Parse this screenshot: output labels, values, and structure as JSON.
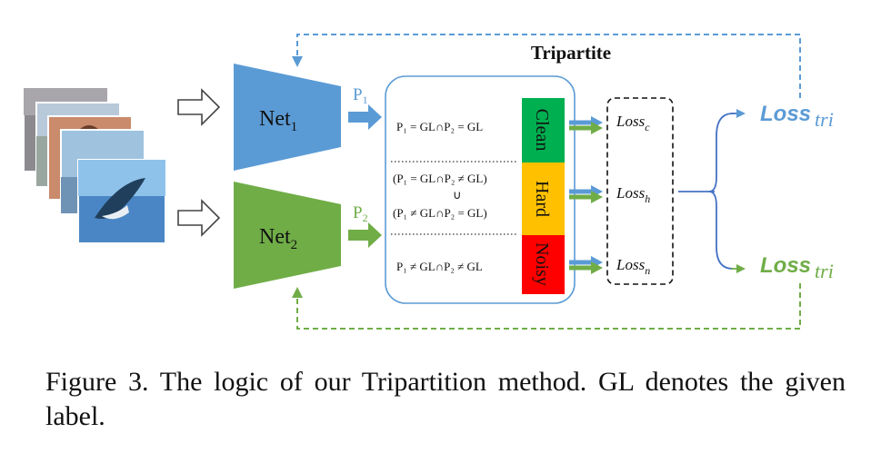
{
  "diagram": {
    "title": "Tripartite",
    "net1": {
      "name": "Net",
      "sub": "1",
      "color": "#5b9bd5"
    },
    "net2": {
      "name": "Net",
      "sub": "2",
      "color": "#70ad47"
    },
    "p1": {
      "name": "P",
      "sub": "1"
    },
    "p2": {
      "name": "P",
      "sub": "2"
    },
    "conditions": {
      "clean": "P₁ = GL∩P₂ = GL",
      "hard_line1": "(P₁ = GL∩P₂ ≠ GL)",
      "hard_union": "∪",
      "hard_line2": "(P₁ ≠ GL∩P₂ = GL)",
      "noisy": "P₁ ≠ GL∩P₂ ≠ GL"
    },
    "categories": [
      {
        "label": "Clean",
        "color": "#00b050"
      },
      {
        "label": "Hard",
        "color": "#ffc000"
      },
      {
        "label": "Noisy",
        "color": "#ff0000"
      }
    ],
    "losses": [
      {
        "name": "Loss",
        "sub": "c"
      },
      {
        "name": "Loss",
        "sub": "h"
      },
      {
        "name": "Loss",
        "sub": "n"
      }
    ],
    "loss_tri_top": {
      "name": "Loss",
      "sub": "tri",
      "color": "#5b9bd5"
    },
    "loss_tri_bottom": {
      "name": "Loss",
      "sub": "tri",
      "color": "#70ad47"
    }
  },
  "caption": "Figure 3.  The logic of our Tripartition method.  GL denotes the given label."
}
